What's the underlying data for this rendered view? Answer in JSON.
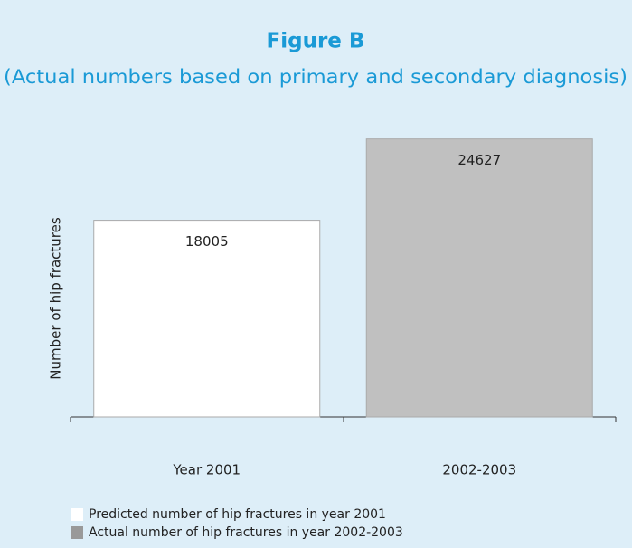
{
  "chart_data": {
    "type": "bar",
    "title": "Figure B",
    "subtitle": "(Actual numbers based on primary and secondary diagnosis)",
    "y_label": "Number of hip fractures",
    "categories": [
      "Year 2001",
      "2002-2003"
    ],
    "values": [
      18005,
      24627
    ],
    "colors": [
      "#ffffff",
      "#c0c0c0"
    ],
    "ylim": [
      2000,
      26000
    ],
    "legend": [
      {
        "label": "Predicted number of hip fractures in year 2001",
        "color": "#ffffff"
      },
      {
        "label": "Actual number of hip fractures in year 2002-2003",
        "color": "#999999"
      }
    ]
  }
}
